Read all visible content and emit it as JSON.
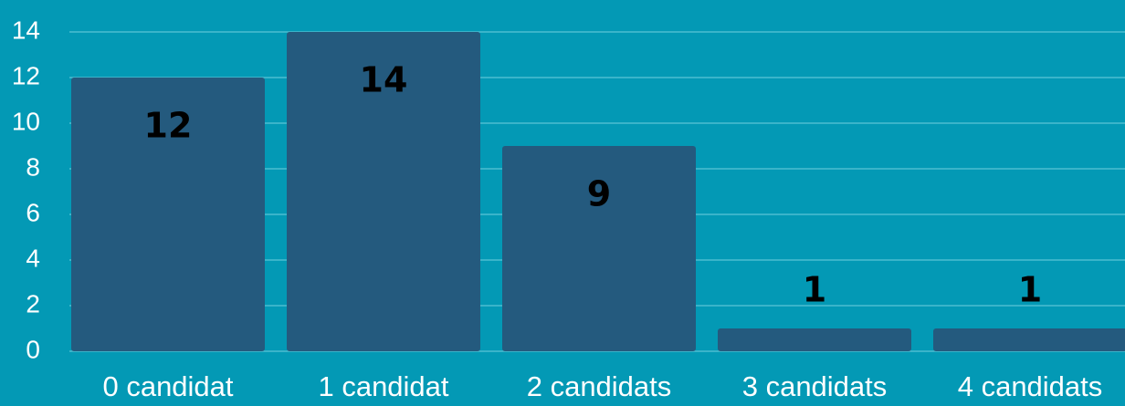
{
  "chart_data": {
    "type": "bar",
    "categories": [
      "0 candidat",
      "1 candidat",
      "2 candidats",
      "3 candidats",
      "4 candidats"
    ],
    "values": [
      12,
      14,
      9,
      1,
      1
    ],
    "color": "#245a7e",
    "ylim": [
      0,
      14
    ],
    "yticks": [
      0,
      2,
      4,
      6,
      8,
      10,
      12,
      14
    ],
    "grid": true
  }
}
